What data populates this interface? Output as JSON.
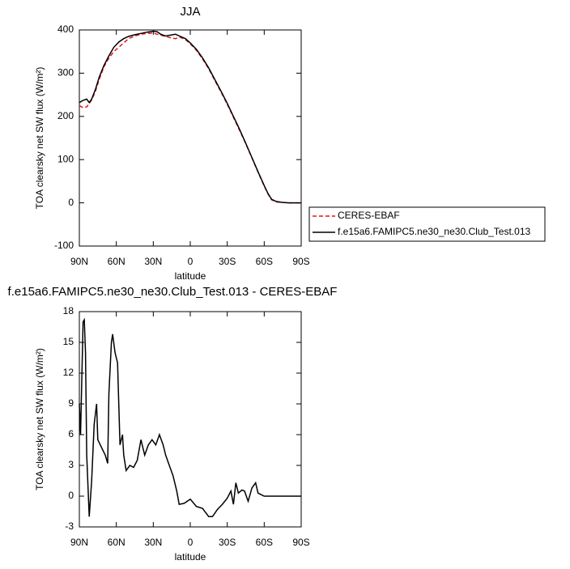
{
  "chart_data": [
    {
      "type": "line",
      "title": "JJA",
      "xlabel": "latitude",
      "ylabel": "TOA clearsky net SW flux (W/m²)",
      "x": [
        90,
        87,
        84,
        82,
        80,
        77,
        74,
        70,
        66,
        62,
        58,
        54,
        50,
        45,
        40,
        35,
        30,
        27,
        24,
        20,
        16,
        12,
        8,
        4,
        0,
        -5,
        -10,
        -15,
        -20,
        -25,
        -30,
        -35,
        -40,
        -45,
        -50,
        -55,
        -60,
        -63,
        -66,
        -70,
        -75,
        -80,
        -85,
        -90
      ],
      "series": [
        {
          "name": "CERES-EBAF",
          "color": "#e8141c",
          "dash": true,
          "values": [
            225,
            220,
            222,
            230,
            238,
            258,
            285,
            315,
            335,
            350,
            360,
            370,
            380,
            386,
            390,
            392,
            393,
            390,
            388,
            385,
            382,
            380,
            383,
            378,
            368,
            353,
            333,
            310,
            283,
            256,
            228,
            198,
            168,
            137,
            104,
            71,
            39,
            21,
            7,
            2,
            1,
            0,
            0,
            0
          ]
        },
        {
          "name": "f.e15a6.FAMIPC5.ne30_ne30.Club_Test.013",
          "color": "#000000",
          "dash": false,
          "values": [
            232,
            237,
            240,
            232,
            240,
            262,
            290,
            318,
            340,
            360,
            372,
            380,
            385,
            389,
            392,
            395,
            397,
            396,
            390,
            386,
            388,
            390,
            385,
            380,
            370,
            355,
            335,
            312,
            285,
            258,
            230,
            200,
            170,
            138,
            105,
            72,
            40,
            22,
            8,
            3,
            1,
            0,
            0,
            0
          ]
        }
      ],
      "xlim": [
        90,
        -90
      ],
      "xticks": [
        {
          "value": 90,
          "label": "90N"
        },
        {
          "value": 60,
          "label": "60N"
        },
        {
          "value": 30,
          "label": "30N"
        },
        0,
        {
          "value": -30,
          "label": "30S"
        },
        {
          "value": -60,
          "label": "60S"
        },
        {
          "value": -90,
          "label": "90S"
        }
      ],
      "ylim": [
        -100,
        400
      ],
      "yticks": [
        -100,
        0,
        100,
        200,
        300,
        400
      ],
      "legend": "right"
    },
    {
      "type": "line",
      "title": "f.e15a6.FAMIPC5.ne30_ne30.Club_Test.013 - CERES-EBAF",
      "xlabel": "latitude",
      "ylabel": "TOA clearsky net SW flux (W/m²)",
      "x": [
        90,
        89,
        87,
        86,
        85,
        84,
        82,
        80,
        78,
        76,
        75,
        73,
        71,
        69,
        67,
        66,
        64,
        63,
        61,
        59,
        57,
        55,
        54,
        52,
        49,
        46,
        43,
        40,
        37,
        34,
        31,
        28,
        25,
        22,
        20,
        17,
        14,
        11,
        9,
        5,
        0,
        -5,
        -10,
        -15,
        -18,
        -22,
        -26,
        -30,
        -33,
        -35,
        -37,
        -39,
        -42,
        -44,
        -47,
        -50,
        -53,
        -55,
        -60,
        -90
      ],
      "values": [
        9,
        6,
        17,
        17.2,
        14,
        4,
        -2,
        1.5,
        7,
        9,
        5.5,
        5,
        4.5,
        4,
        3.2,
        10,
        15,
        15.8,
        14,
        13,
        5,
        6,
        4,
        2.5,
        3,
        2.8,
        3.5,
        5.5,
        4,
        5,
        5.5,
        5,
        6,
        5,
        4,
        3,
        2,
        0.5,
        -0.8,
        -0.7,
        -0.3,
        -1,
        -1.2,
        -2,
        -2,
        -1.3,
        -0.8,
        -0.2,
        0.5,
        -0.8,
        1.3,
        0.3,
        0.6,
        0.5,
        -0.5,
        0.8,
        1.3,
        0.3,
        0,
        0
      ],
      "color": "#000000",
      "xlim": [
        90,
        -90
      ],
      "xticks": [
        {
          "value": 90,
          "label": "90N"
        },
        {
          "value": 60,
          "label": "60N"
        },
        {
          "value": 30,
          "label": "30N"
        },
        0,
        {
          "value": -30,
          "label": "30S"
        },
        {
          "value": -60,
          "label": "60S"
        },
        {
          "value": -90,
          "label": "90S"
        }
      ],
      "ylim": [
        -3,
        18
      ],
      "yticks": [
        -3,
        0,
        3,
        6,
        9,
        12,
        15,
        18
      ]
    }
  ]
}
